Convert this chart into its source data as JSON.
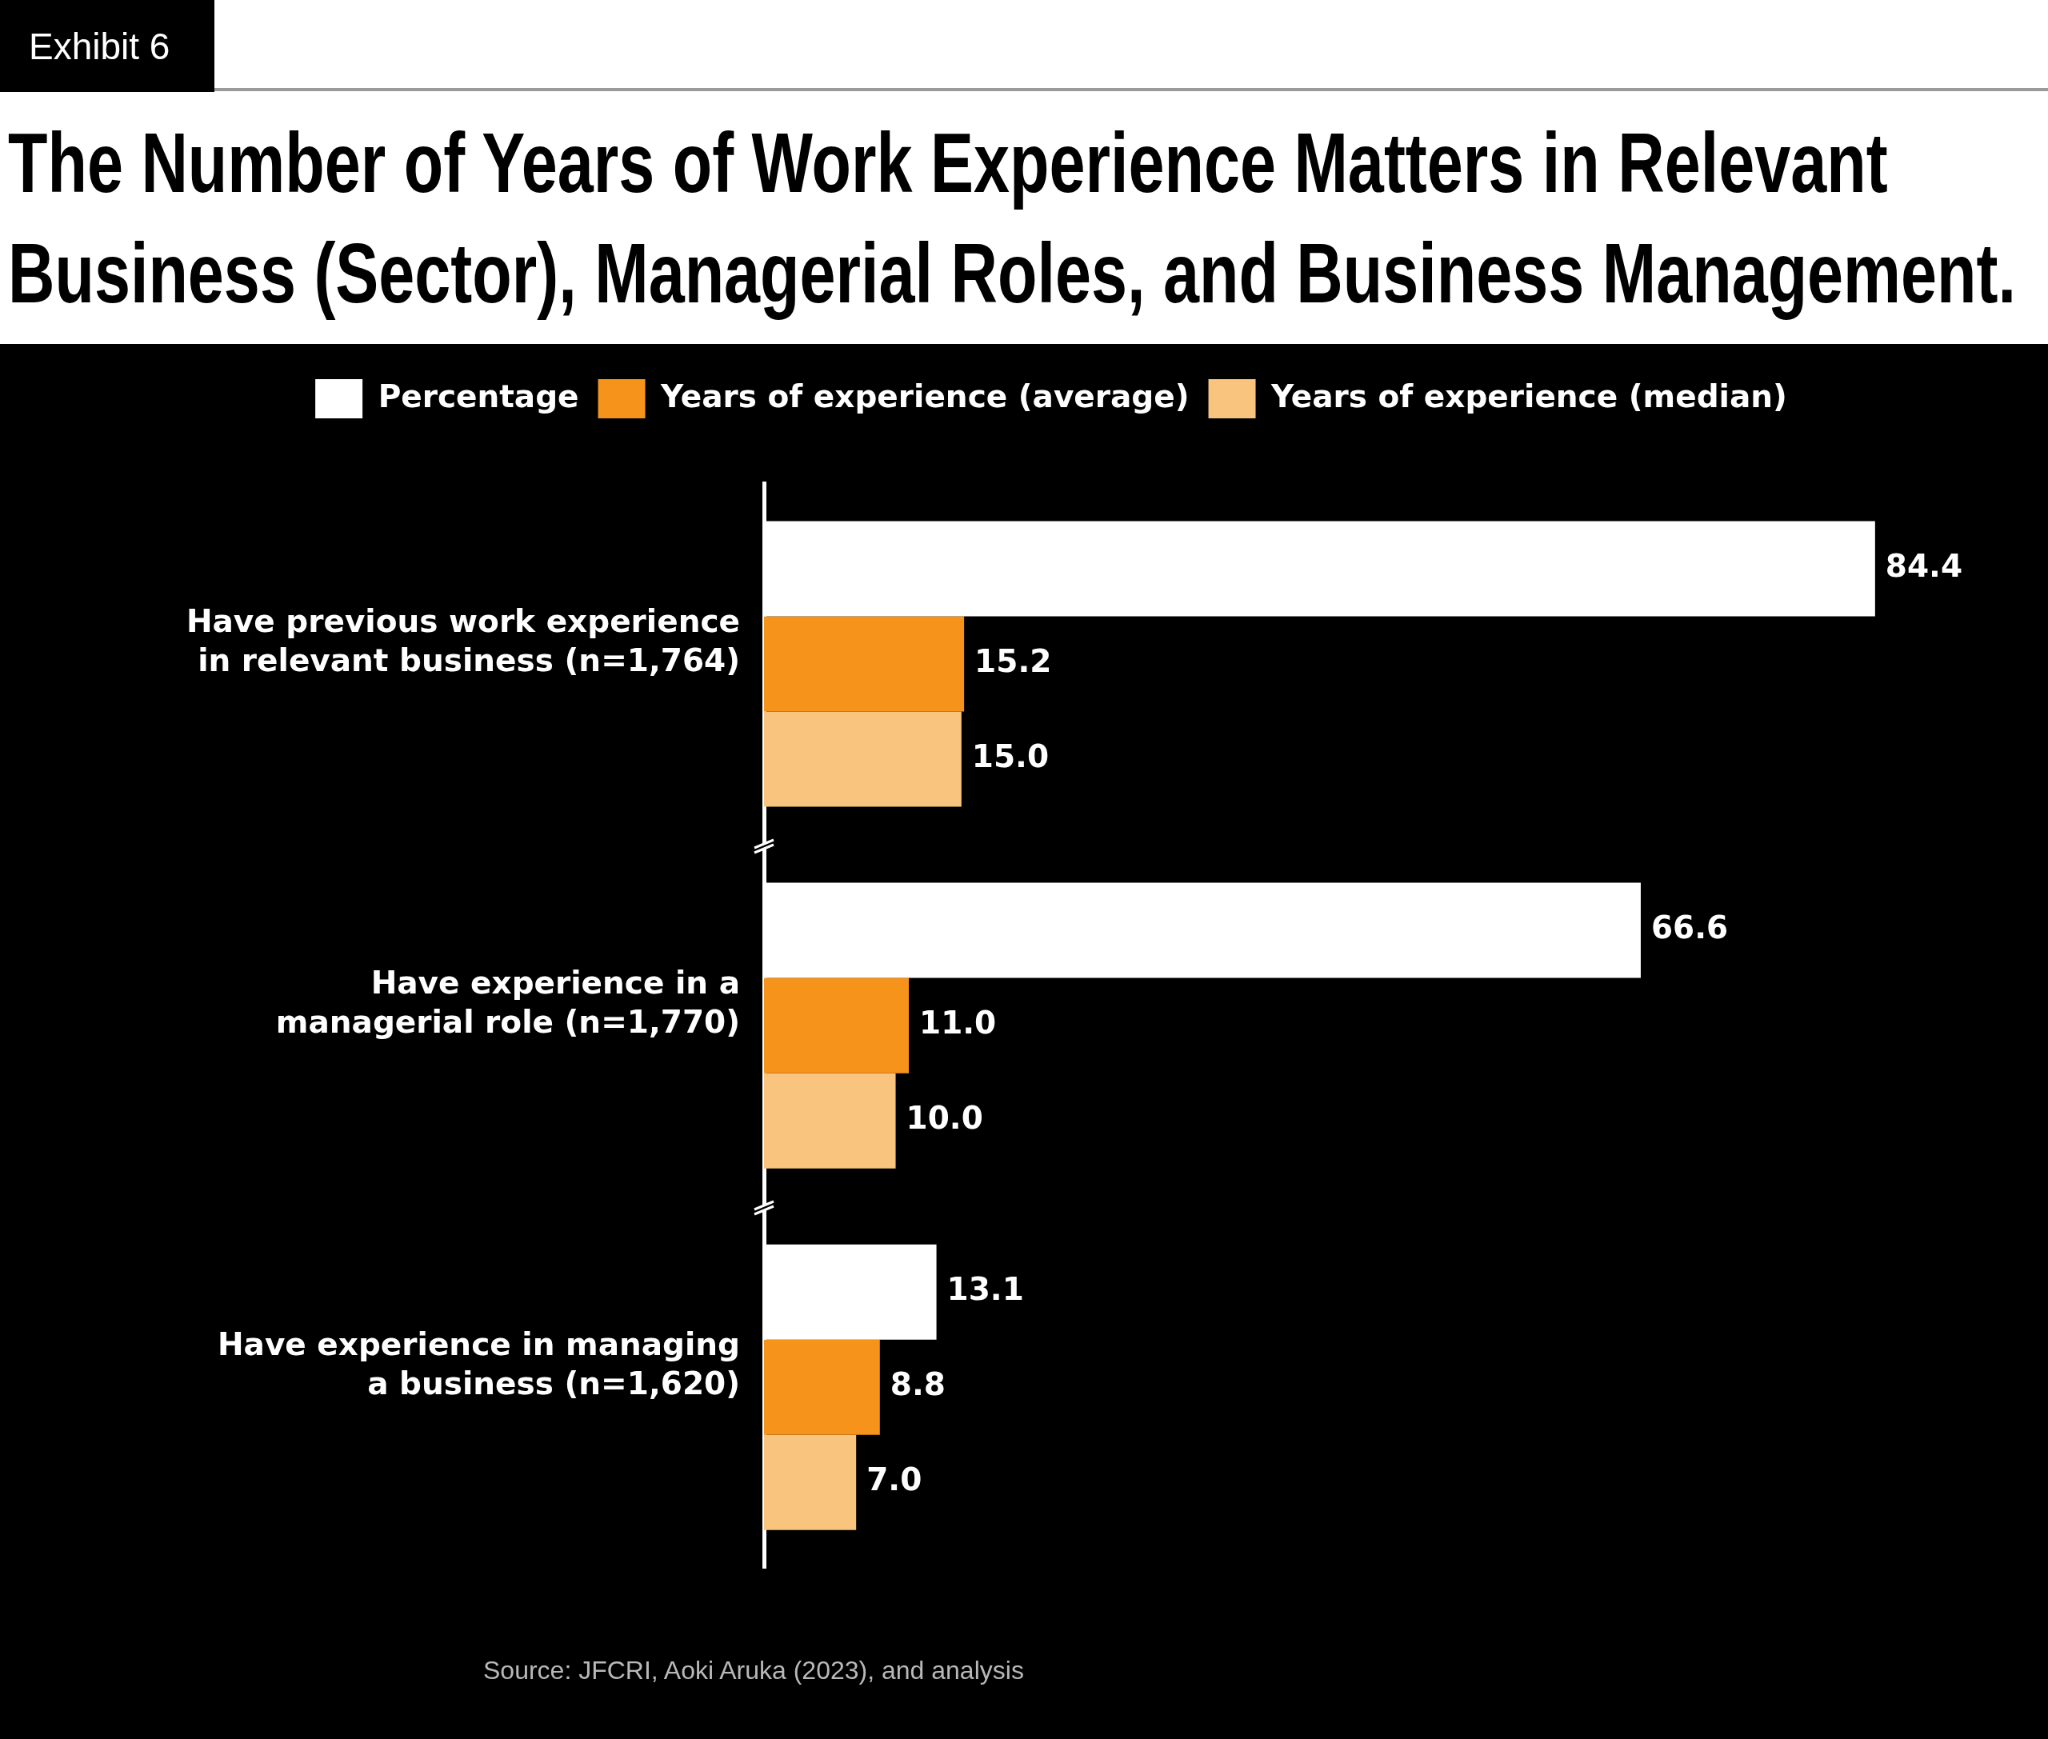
{
  "chart_data": {
    "type": "bar",
    "orientation": "horizontal",
    "title": "The Number of Years of Work Experience Matters in Relevant Business (Sector), Managerial Roles, and Business Management.",
    "categories": [
      "Have previous work experience in relevant business (n=1,764)",
      "Have experience in a managerial role (n=1,770)",
      "Have experience in managing a business (n=1,620)"
    ],
    "series": [
      {
        "name": "Percentage",
        "color": "#ffffff",
        "values": [
          84.4,
          66.6,
          13.1
        ],
        "value_labels": [
          "84.4",
          "66.6",
          "13.1"
        ]
      },
      {
        "name": "Years of experience (average)",
        "color": "#f6931b",
        "values": [
          15.2,
          11.0,
          8.8
        ],
        "value_labels": [
          "15.2",
          "11.0",
          "8.8"
        ]
      },
      {
        "name": "Years of experience (median)",
        "color": "#f8c47e",
        "values": [
          15.0,
          10.0,
          7.0
        ],
        "value_labels": [
          "15.0",
          "10.0",
          "7.0"
        ]
      }
    ],
    "legend": "top",
    "tick_labels": "y",
    "annotations": [
      "Exhibit 6",
      "Source: JFCRI, Aoki Aruka (2023), and analysis"
    ]
  }
}
